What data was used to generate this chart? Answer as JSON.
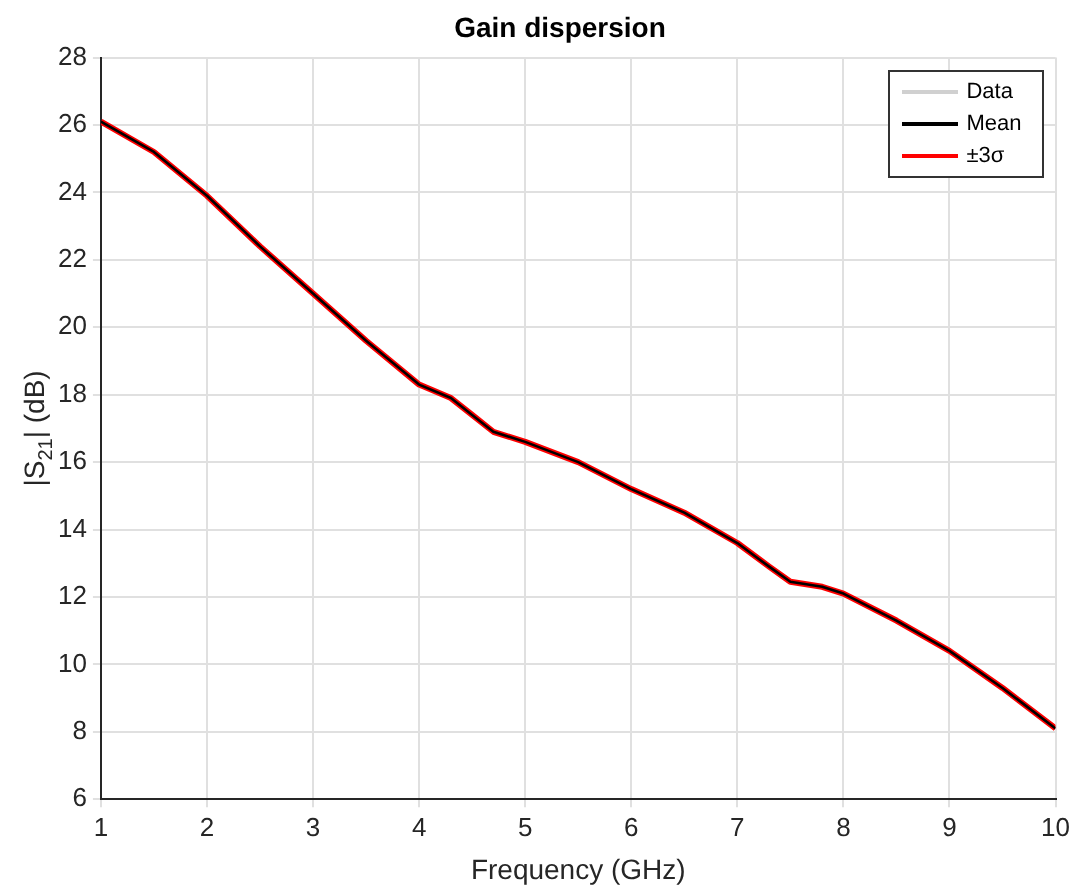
{
  "chart_data": {
    "type": "line",
    "title": "Gain dispersion",
    "xlabel": "Frequency (GHz)",
    "ylabel": "|S$_{21}$| (dB)",
    "x": [
      1,
      1.5,
      2,
      2.5,
      3,
      3.5,
      4,
      4.3,
      4.5,
      4.7,
      5,
      5.5,
      6,
      6.5,
      7,
      7.3,
      7.5,
      7.8,
      8,
      8.5,
      9,
      9.5,
      10
    ],
    "series": [
      {
        "name": "Data",
        "color": "#d0d0d0",
        "values": [
          null,
          null,
          null,
          null,
          null,
          null,
          null,
          null,
          null,
          null,
          null,
          null,
          null,
          null,
          null,
          null,
          null,
          null,
          null,
          null,
          null,
          null,
          null
        ]
      },
      {
        "name": "±3σ",
        "color": "#ff0000",
        "values": [
          26.1,
          25.2,
          23.9,
          22.4,
          21.0,
          19.6,
          18.3,
          17.9,
          17.4,
          16.9,
          16.6,
          16.0,
          15.2,
          14.5,
          13.6,
          12.9,
          12.45,
          12.3,
          12.1,
          11.3,
          10.4,
          9.3,
          8.1
        ]
      },
      {
        "name": "Mean",
        "color": "#000000",
        "values": [
          26.1,
          25.2,
          23.9,
          22.4,
          21.0,
          19.6,
          18.3,
          17.9,
          17.4,
          16.9,
          16.6,
          16.0,
          15.2,
          14.5,
          13.6,
          12.9,
          12.45,
          12.3,
          12.1,
          11.3,
          10.4,
          9.3,
          8.1
        ]
      }
    ],
    "xlim": [
      1,
      10
    ],
    "xticks": [
      1,
      2,
      3,
      4,
      5,
      6,
      7,
      8,
      9,
      10
    ],
    "ylim": [
      6,
      28
    ],
    "yticks": [
      6,
      8,
      10,
      12,
      14,
      16,
      18,
      20,
      22,
      24,
      26,
      28
    ],
    "grid": true,
    "legend": "top right",
    "marker": "none",
    "line_style": "solid"
  }
}
